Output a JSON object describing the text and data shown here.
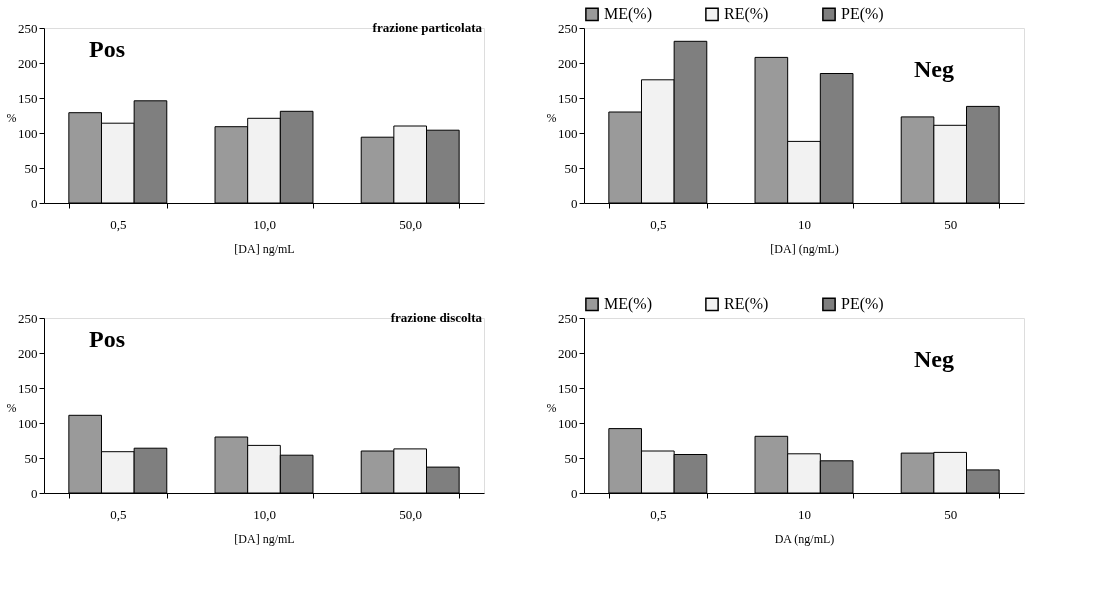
{
  "chart_data": [
    {
      "type": "bar",
      "title": "Pos",
      "annotations": [
        "frazione particolata"
      ],
      "xlabel": "[DA] ng/mL",
      "ylabel": "%",
      "categories": [
        "0,5",
        "10,0",
        "50,0"
      ],
      "ylim": [
        0,
        250
      ],
      "yticks": [
        0,
        50,
        100,
        150,
        200,
        250
      ],
      "legend": false,
      "series": [
        {
          "color": "#9a9a9a",
          "values": [
            129,
            109,
            94
          ]
        },
        {
          "color": "#f2f2f2",
          "values": [
            114,
            121,
            110
          ]
        },
        {
          "color": "#7f7f7f",
          "values": [
            146,
            131,
            104
          ]
        }
      ]
    },
    {
      "type": "bar",
      "title": "Neg",
      "xlabel": "[DA] (ng/mL)",
      "ylabel": "%",
      "categories": [
        "0,5",
        "10",
        "50"
      ],
      "ylim": [
        0,
        250
      ],
      "yticks": [
        0,
        50,
        100,
        150,
        200,
        250
      ],
      "legend": "top",
      "series": [
        {
          "name": "ME(%)",
          "color": "#9a9a9a",
          "values": [
            130,
            208,
            123
          ]
        },
        {
          "name": "RE(%)",
          "color": "#f2f2f2",
          "values": [
            176,
            88,
            111
          ]
        },
        {
          "name": "PE(%)",
          "color": "#7f7f7f",
          "values": [
            231,
            185,
            138
          ]
        }
      ]
    },
    {
      "type": "bar",
      "title": "Pos",
      "annotations": [
        "frazione discolta"
      ],
      "xlabel": "[DA] ng/mL",
      "ylabel": "%",
      "categories": [
        "0,5",
        "10,0",
        "50,0"
      ],
      "ylim": [
        0,
        250
      ],
      "yticks": [
        0,
        50,
        100,
        150,
        200,
        250
      ],
      "legend": false,
      "series": [
        {
          "color": "#9a9a9a",
          "values": [
            111,
            80,
            60
          ]
        },
        {
          "color": "#f2f2f2",
          "values": [
            59,
            68,
            63
          ]
        },
        {
          "color": "#7f7f7f",
          "values": [
            64,
            54,
            37
          ]
        }
      ]
    },
    {
      "type": "bar",
      "title": "Neg",
      "xlabel": "DA (ng/mL)",
      "ylabel": "%",
      "categories": [
        "0,5",
        "10",
        "50"
      ],
      "ylim": [
        0,
        250
      ],
      "yticks": [
        0,
        50,
        100,
        150,
        200,
        250
      ],
      "legend": "top",
      "series": [
        {
          "name": "ME(%)",
          "color": "#9a9a9a",
          "values": [
            92,
            81,
            57
          ]
        },
        {
          "name": "RE(%)",
          "color": "#f2f2f2",
          "values": [
            60,
            56,
            58
          ]
        },
        {
          "name": "PE(%)",
          "color": "#7f7f7f",
          "values": [
            55,
            46,
            33
          ]
        }
      ]
    }
  ]
}
